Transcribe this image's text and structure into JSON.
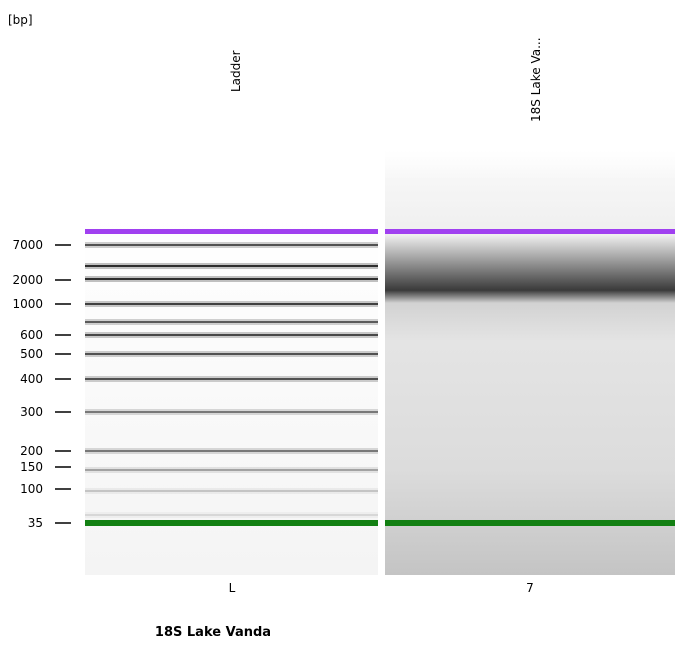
{
  "unit": "[bp]",
  "markers": [
    "7000",
    "2000",
    "1000",
    "600",
    "500",
    "400",
    "300",
    "200",
    "150",
    "100",
    "35"
  ],
  "lanes": [
    {
      "name": "Ladder",
      "label": "L"
    },
    {
      "name": "18S Lake Va...",
      "label": "7"
    }
  ],
  "footer": "18S Lake Vanda"
}
